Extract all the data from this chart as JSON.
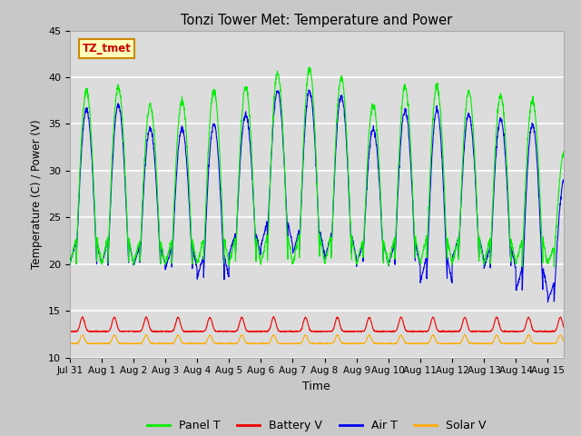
{
  "title": "Tonzi Tower Met: Temperature and Power",
  "xlabel": "Time",
  "ylabel": "Temperature (C) / Power (V)",
  "ylim": [
    10,
    45
  ],
  "yticks": [
    10,
    15,
    20,
    25,
    30,
    35,
    40,
    45
  ],
  "plot_bg_color": "#dcdcdc",
  "fig_bg_color": "#c8c8c8",
  "colors": {
    "Panel T": "#00ee00",
    "Battery V": "#ee0000",
    "Air T": "#0000ee",
    "Solar V": "#ffaa00"
  },
  "annotation_text": "TZ_tmet",
  "annotation_color": "#cc0000",
  "annotation_bg": "#ffffbb",
  "annotation_border": "#cc8800",
  "num_days": 15.5,
  "points_per_day": 144,
  "panel_peaks": [
    38.5,
    39.0,
    37.0,
    37.5,
    38.5,
    39.0,
    40.5,
    41.0,
    40.0,
    37.0,
    39.0,
    39.0,
    38.5,
    38.0,
    37.5,
    32.0
  ],
  "panel_night_min": 20.0,
  "air_peaks": [
    36.5,
    37.0,
    34.5,
    34.5,
    35.0,
    36.0,
    38.5,
    38.5,
    38.0,
    34.5,
    36.5,
    36.5,
    36.0,
    35.5,
    35.0,
    29.0
  ],
  "air_night_min": [
    20.0,
    20.0,
    19.8,
    19.5,
    18.5,
    21.0,
    22.0,
    21.0,
    20.5,
    20.0,
    19.8,
    18.0,
    20.5,
    19.5,
    17.0,
    16.0
  ],
  "battery_base": 12.8,
  "battery_spike": 1.5,
  "solar_base": 11.5,
  "solar_pulse": 0.9
}
